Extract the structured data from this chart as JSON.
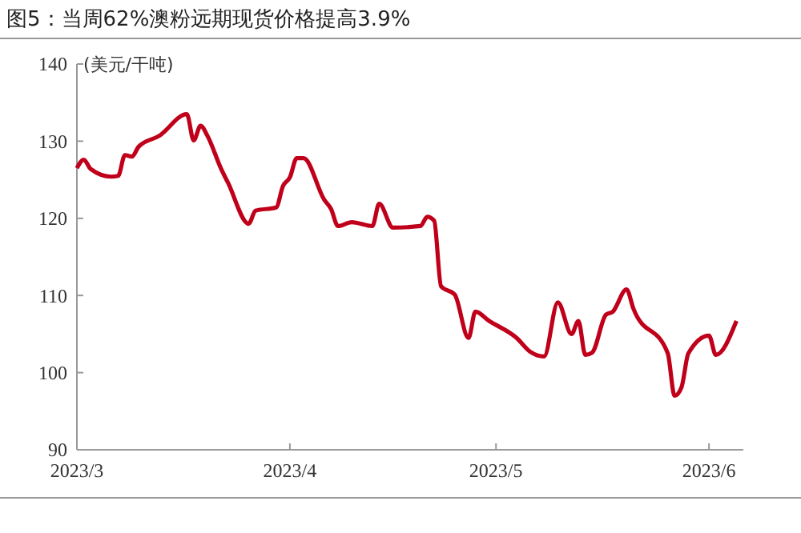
{
  "chart_data": {
    "type": "line",
    "title": "图5：当周62%澳粉远期现货价格提高3.9%",
    "ylabel": "(美元/干吨)",
    "x": [
      "2023-03-01",
      "2023-03-02",
      "2023-03-03",
      "2023-03-06",
      "2023-03-07",
      "2023-03-08",
      "2023-03-09",
      "2023-03-10",
      "2023-03-13",
      "2023-03-17",
      "2023-03-18",
      "2023-03-19",
      "2023-03-20",
      "2023-03-22",
      "2023-03-23",
      "2023-03-26",
      "2023-03-27",
      "2023-03-30",
      "2023-03-31",
      "2023-04-01",
      "2023-04-02",
      "2023-04-03",
      "2023-04-06",
      "2023-04-07",
      "2023-04-08",
      "2023-04-10",
      "2023-04-13",
      "2023-04-14",
      "2023-04-16",
      "2023-04-20",
      "2023-04-21",
      "2023-04-22",
      "2023-04-23",
      "2023-04-25",
      "2023-04-27",
      "2023-04-28",
      "2023-04-30",
      "2023-05-04",
      "2023-05-06",
      "2023-05-08",
      "2023-05-10",
      "2023-05-12",
      "2023-05-13",
      "2023-05-14",
      "2023-05-15",
      "2023-05-17",
      "2023-05-18",
      "2023-05-20",
      "2023-05-21",
      "2023-05-26",
      "2023-05-27",
      "2023-05-28",
      "2023-05-29",
      "2023-06-01",
      "2023-06-02",
      "2023-06-05"
    ],
    "series": [
      {
        "color": "#c0001a",
        "values": [
          126.5,
          127.6,
          126.4,
          125.4,
          125.5,
          128.2,
          128.0,
          129.3,
          130.7,
          133.5,
          130.1,
          132.0,
          130.7,
          126.4,
          124.6,
          119.3,
          121.0,
          121.4,
          124.2,
          125.3,
          127.8,
          127.8,
          122.4,
          121.2,
          119.0,
          119.5,
          119.0,
          121.9,
          118.8,
          119.0,
          120.2,
          119.7,
          111.2,
          110.1,
          104.5,
          107.9,
          106.7,
          104.5,
          102.7,
          102.1,
          109.1,
          105.0,
          106.7,
          102.3,
          102.6,
          107.5,
          107.9,
          110.8,
          108.3,
          102.5,
          97.0,
          98.1,
          102.5,
          104.8,
          102.3,
          106.7
        ]
      }
    ],
    "xlim": [
      "2023-03-01",
      "2023-06-06"
    ],
    "xticks": [
      {
        "value": "2023-03-01",
        "label": "2023/3"
      },
      {
        "value": "2023-04-01",
        "label": "2023/4"
      },
      {
        "value": "2023-05-01",
        "label": "2023/5"
      },
      {
        "value": "2023-06-01",
        "label": "2023/6"
      }
    ],
    "ylim": [
      90,
      140
    ],
    "yticks": [
      90,
      100,
      110,
      120,
      130,
      140
    ],
    "grid": false
  }
}
